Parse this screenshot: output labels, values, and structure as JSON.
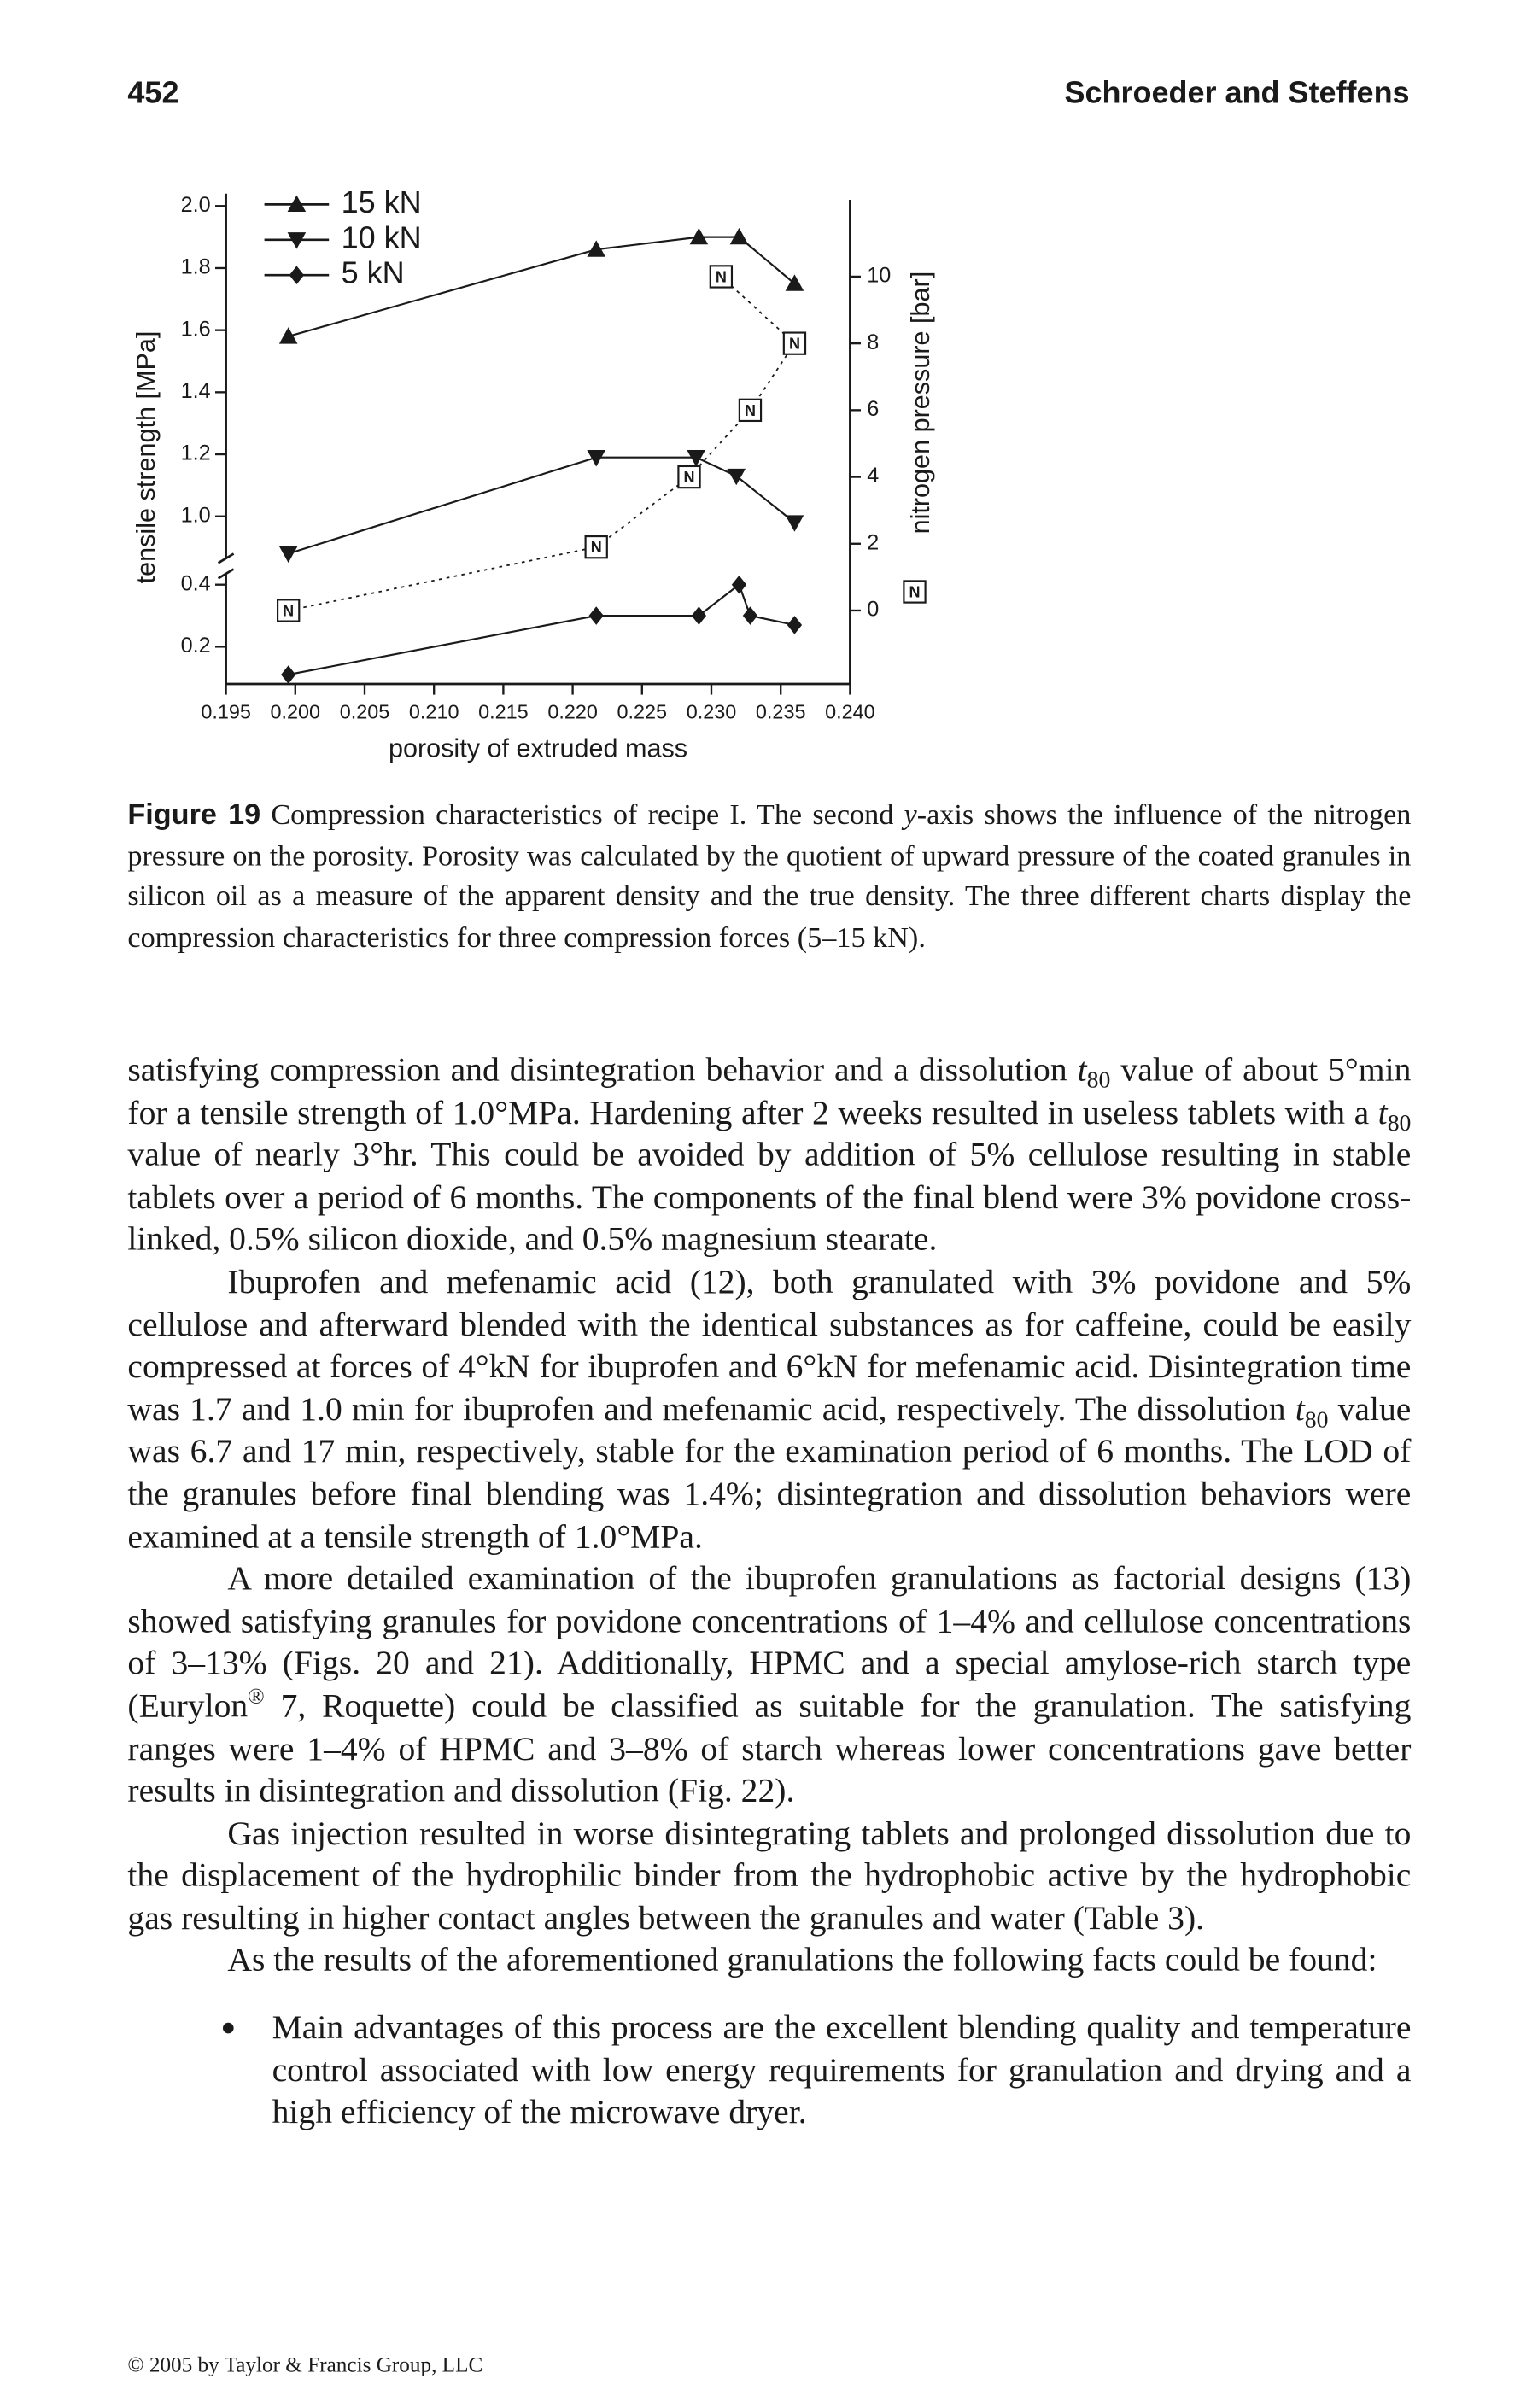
{
  "header": {
    "page": "452",
    "authors": "Schroeder and Steffens"
  },
  "chart_data": {
    "type": "line",
    "xlabel": "porosity of extruded mass",
    "ylabel": "tensile strength [MPa]",
    "y2label": "nitrogen pressure [bar]",
    "xlim": [
      0.195,
      0.24
    ],
    "xticks": [
      0.195,
      {
        "value": 0.2,
        "label": "0.200"
      },
      0.205,
      {
        "value": 0.21,
        "label": "0.210"
      },
      0.215,
      {
        "value": 0.22,
        "label": "0.220"
      },
      0.225,
      {
        "value": 0.23,
        "label": "0.230"
      },
      0.235,
      {
        "value": 0.24,
        "label": "0.240"
      }
    ],
    "ylim": [
      0.08,
      2.02
    ],
    "ybreak": [
      0.46,
      0.84
    ],
    "yticks": [
      0.2,
      0.4,
      {
        "value": 1,
        "label": "1.0"
      },
      1.2,
      1.4,
      1.6,
      1.8,
      {
        "value": 2,
        "label": "2.0"
      }
    ],
    "y2lim": [
      -2.2,
      12.3
    ],
    "y2ticks": [
      0,
      2,
      4,
      6,
      8,
      10
    ],
    "legend": "top-left",
    "series": [
      {
        "name": "15 kN",
        "color": "#1a1a1a",
        "marker": "triangle-up",
        "line": "solid",
        "x": [
          0.1995,
          0.2217,
          0.2291,
          0.232,
          0.236
        ],
        "values": [
          1.58,
          1.86,
          1.9,
          1.9,
          1.75
        ]
      },
      {
        "name": "10 kN",
        "color": "#1a1a1a",
        "marker": "triangle-down",
        "line": "solid",
        "x": [
          0.1995,
          0.2217,
          0.2289,
          0.2318,
          0.236
        ],
        "values": [
          0.88,
          1.19,
          1.19,
          1.13,
          0.98
        ]
      },
      {
        "name": "5 kN",
        "color": "#1a1a1a",
        "marker": "diamond",
        "line": "solid",
        "x": [
          0.1995,
          0.2217,
          0.2291,
          0.232,
          0.2328,
          0.236
        ],
        "values": [
          0.11,
          0.3,
          0.3,
          0.4,
          0.3,
          0.27
        ]
      },
      {
        "axis": "y2",
        "color": "#1a1a1a",
        "marker": "square-label",
        "marker_label": "N",
        "line": "dotted",
        "x": [
          0.1995,
          0.2217,
          0.2284,
          0.2328,
          0.236,
          0.2307
        ],
        "values": [
          0,
          1.9,
          4,
          6,
          8,
          10
        ]
      }
    ]
  },
  "caption": {
    "label": "Figure 19",
    "text": [
      " Compression characteristics of recipe I. The second ",
      {
        "i": "y"
      },
      "-axis shows the influence of the nitrogen pressure on the porosity. Porosity was calculated by the quotient of upward pressure of the coated granules in silicon oil as a measure of the apparent density and the true density. The three different charts display the compression characteristics for three compression forces (5–15 kN)."
    ]
  },
  "body": [
    {
      "indent": false,
      "runs": [
        "satisfying compression and disintegration behavior and a dissolution ",
        {
          "i": "t"
        },
        {
          "sub": "80"
        },
        " value of about 5°min for a tensile strength of 1.0°MPa. Hardening after 2 weeks resulted in useless tablets with a ",
        {
          "i": "t"
        },
        {
          "sub": "80"
        },
        " value of nearly 3°hr. This could be avoided by addition of 5% cellulose resulting in stable tablets over a period of 6 months. The components of the final blend were 3% povidone cross-linked, 0.5% silicon dioxide, and 0.5% magnesium stearate."
      ]
    },
    {
      "indent": true,
      "runs": [
        "Ibuprofen and mefenamic acid (12), both granulated with 3% povidone and 5% cellulose and afterward blended with the identical substances as for caffeine, could be easily compressed at forces of 4°kN for ibuprofen and 6°kN for mefenamic acid. Disintegration time was 1.7 and 1.0 min for ibuprofen and mefenamic acid, respectively. The dissolution ",
        {
          "i": "t"
        },
        {
          "sub": "80"
        },
        " value was 6.7 and 17 min, respectively, stable for the examination period of 6 months. The LOD of the granules before final blending was 1.4%; disintegration and dissolution behaviors were examined at a tensile strength of 1.0°MPa."
      ]
    },
    {
      "indent": true,
      "runs": [
        "A more detailed examination of the ibuprofen granulations as factorial designs (13) showed satisfying granules for povidone concentrations of 1–4% and cellulose concentrations of 3–13% (Figs. 20 and 21). Additionally, HPMC and a special amylose-rich starch type (Eurylon",
        {
          "sup": "®"
        },
        " 7, Roquette) could be classified as suitable for the granulation. The satisfying ranges were 1–4% of HPMC and 3–8% of starch whereas lower concentrations gave better results in disintegration and dissolution (Fig. 22)."
      ]
    },
    {
      "indent": true,
      "runs": [
        "Gas injection resulted in worse disintegrating tablets and prolonged dissolution due to the displacement of the hydrophilic binder from the hydrophobic active by the hydrophobic gas resulting in higher contact angles between the granules and water (Table 3)."
      ]
    },
    {
      "indent": true,
      "runs": [
        "As the results of the aforementioned granulations the following facts could be found:"
      ]
    }
  ],
  "bullets": [
    {
      "runs": [
        "Main advantages of this process are the excellent blending quality and temperature control associated with low energy requirements for granulation and drying and a high efficiency of the microwave dryer."
      ]
    }
  ],
  "footer": "© 2005 by Taylor & Francis Group, LLC"
}
